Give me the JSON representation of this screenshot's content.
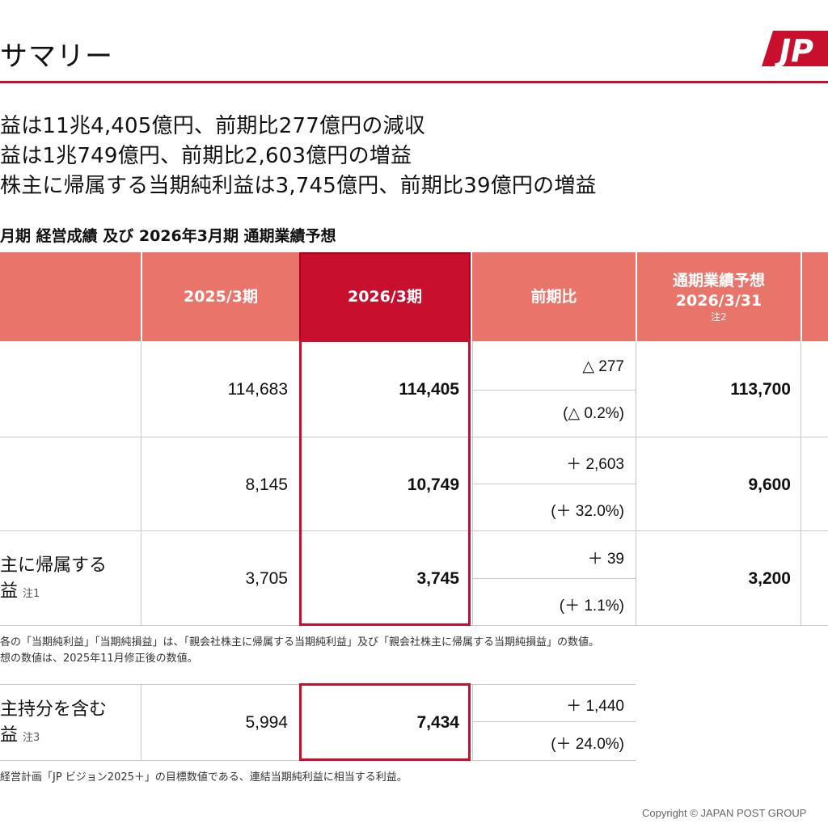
{
  "page": {
    "title": "サマリー",
    "logo_text": "JP",
    "brand_color": "#c8102e",
    "header_color": "#e8746a"
  },
  "bullets": [
    "益は11兆4,405億円、前期比277億円の減収",
    "益は1兆749億円、前期比2,603億円の増益",
    "株主に帰属する当期純利益は3,745億円、前期比39億円の増益"
  ],
  "table": {
    "subhead": "月期 経営成績 及び 2026年3月期 通期業績予想",
    "headers": {
      "prev": "2025/3期",
      "curr": "2026/3期",
      "yoy": "前期比",
      "forecast_line1": "通期業績予想",
      "forecast_line2": "2026/3/31",
      "forecast_note": "注2"
    },
    "rows": [
      {
        "label_line1": "",
        "label_line2": "",
        "note": "",
        "prev": "114,683",
        "curr": "114,405",
        "yoy_abs": "△ 277",
        "yoy_pct": "(△ 0.2%)",
        "forecast": "113,700"
      },
      {
        "label_line1": "",
        "label_line2": "",
        "note": "",
        "prev": "8,145",
        "curr": "10,749",
        "yoy_abs": "＋ 2,603",
        "yoy_pct": "(＋ 32.0%)",
        "forecast": "9,600"
      },
      {
        "label_line1": "主に帰属する",
        "label_line2": "益",
        "note": "注1",
        "prev": "3,705",
        "curr": "3,745",
        "yoy_abs": "＋ 39",
        "yoy_pct": "(＋ 1.1%)",
        "forecast": "3,200"
      }
    ],
    "footnotes": [
      "各の「当期純利益」「当期純損益」は、「親会社株主に帰属する当期純利益」及び「親会社株主に帰属する当期純損益」の数値。",
      "想の数値は、2025年11月修正後の数値。"
    ]
  },
  "table2": {
    "label_line1": "主持分を含む",
    "label_line2": "益",
    "note": "注3",
    "prev": "5,994",
    "curr": "7,434",
    "yoy_abs": "＋ 1,440",
    "yoy_pct": "(＋ 24.0%)",
    "footnote": "経営計画「JP ビジョン2025＋」の目標数値である、連結当期純利益に相当する利益。"
  },
  "footer": {
    "copyright": "Copyright ©  JAPAN POST GROUP"
  }
}
